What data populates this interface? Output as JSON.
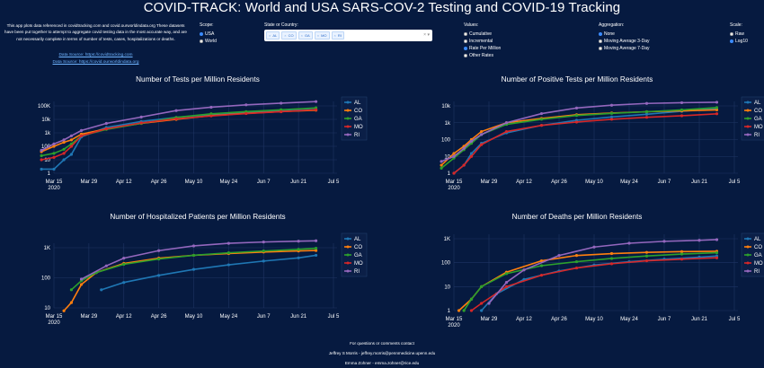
{
  "title": "COVID-TRACK: World and USA SARS-COV-2 Testing and COVID-19 Tracking",
  "intro": {
    "text": "This app plots data referenced in covidtracking.com and covid.ourworldindata.org These datasets have been put together to attempt to aggregate covid testing data in the most accurate way, and are not necessarily complete in terms of number of tests, cases, hospitalizations or deaths.",
    "source1": "Data Source: https://covidtracking.com",
    "source2": "Data Source: https://covid.ourworldindata.org"
  },
  "controls": {
    "scope": {
      "label": "Scope:",
      "options": [
        "USA",
        "World"
      ],
      "selected": "USA"
    },
    "state": {
      "label": "State or Country:",
      "chips": [
        "AL",
        "CO",
        "GA",
        "MO",
        "RI"
      ],
      "clear": "×",
      "arrow": "▾"
    },
    "values": {
      "label": "Values:",
      "options": [
        "Cumulative",
        "Incremental",
        "Rate Per Million",
        "Other Rates"
      ],
      "selected": "Rate Per Million"
    },
    "aggregation": {
      "label": "Aggregation:",
      "options": [
        "None",
        "Moving Average 3-Day",
        "Moving Average 7-Day"
      ],
      "selected": "None"
    },
    "scale": {
      "label": "Scale:",
      "options": [
        "Raw",
        "Log10"
      ],
      "selected": "Log10"
    }
  },
  "legend_colors": {
    "AL": "#1f77b4",
    "CO": "#ff7f0e",
    "GA": "#2ca02c",
    "MO": "#d62728",
    "RI": "#9467bd"
  },
  "x_ticks": [
    "Mar 15",
    "Mar 29",
    "Apr 12",
    "Apr 26",
    "May 10",
    "May 24",
    "Jun 7",
    "Jun 21",
    "Jul 5"
  ],
  "x_tick_sub": "2020",
  "chart_data": [
    {
      "type": "line",
      "title": "Number of Tests per Million Residents",
      "y_scale": "log",
      "y_ticks": [
        "1",
        "10",
        "100",
        "1k",
        "10k",
        "100K"
      ],
      "legend_placement": "right",
      "series": [
        {
          "name": "AL",
          "points": [
            [
              "Mar 10",
              2
            ],
            [
              "Mar 15",
              2
            ],
            [
              "Mar 19",
              10
            ],
            [
              "Mar 22",
              25
            ],
            [
              "Mar 26",
              500
            ],
            [
              "Apr 5",
              2500
            ],
            [
              "Apr 19",
              7000
            ],
            [
              "May 3",
              14000
            ],
            [
              "May 17",
              23000
            ],
            [
              "May 31",
              32000
            ],
            [
              "Jun 14",
              42000
            ],
            [
              "Jun 28",
              55000
            ]
          ]
        },
        {
          "name": "CO",
          "points": [
            [
              "Mar 10",
              40
            ],
            [
              "Mar 15",
              100
            ],
            [
              "Mar 19",
              200
            ],
            [
              "Mar 22",
              300
            ],
            [
              "Mar 26",
              800
            ],
            [
              "Apr 5",
              2000
            ],
            [
              "Apr 19",
              5000
            ],
            [
              "May 3",
              10000
            ],
            [
              "May 17",
              19000
            ],
            [
              "May 31",
              28000
            ],
            [
              "Jun 14",
              38000
            ],
            [
              "Jun 28",
              48000
            ]
          ]
        },
        {
          "name": "GA",
          "points": [
            [
              "Mar 10",
              20
            ],
            [
              "Mar 15",
              30
            ],
            [
              "Mar 19",
              60
            ],
            [
              "Mar 22",
              150
            ],
            [
              "Mar 26",
              600
            ],
            [
              "Apr 5",
              1800
            ],
            [
              "Apr 19",
              5000
            ],
            [
              "May 3",
              14000
            ],
            [
              "May 17",
              26000
            ],
            [
              "May 31",
              38000
            ],
            [
              "Jun 14",
              52000
            ],
            [
              "Jun 28",
              72000
            ]
          ]
        },
        {
          "name": "MO",
          "points": [
            [
              "Mar 10",
              10
            ],
            [
              "Mar 15",
              15
            ],
            [
              "Mar 19",
              30
            ],
            [
              "Mar 22",
              100
            ],
            [
              "Mar 26",
              600
            ],
            [
              "Apr 5",
              2000
            ],
            [
              "Apr 19",
              5500
            ],
            [
              "May 3",
              11000
            ],
            [
              "May 17",
              18000
            ],
            [
              "May 31",
              27000
            ],
            [
              "Jun 14",
              37000
            ],
            [
              "Jun 28",
              52000
            ]
          ]
        },
        {
          "name": "RI",
          "points": [
            [
              "Mar 10",
              50
            ],
            [
              "Mar 15",
              150
            ],
            [
              "Mar 19",
              300
            ],
            [
              "Mar 22",
              600
            ],
            [
              "Mar 26",
              1500
            ],
            [
              "Apr 5",
              5000
            ],
            [
              "Apr 19",
              15000
            ],
            [
              "May 3",
              45000
            ],
            [
              "May 17",
              80000
            ],
            [
              "May 31",
              120000
            ],
            [
              "Jun 14",
              160000
            ],
            [
              "Jun 28",
              210000
            ]
          ]
        }
      ]
    },
    {
      "type": "line",
      "title": "Number of Positive Tests per Million Residents",
      "y_scale": "log",
      "y_ticks": [
        "1",
        "10",
        "100",
        "1k",
        "10k"
      ],
      "legend_placement": "right",
      "series": [
        {
          "name": "AL",
          "points": [
            [
              "Mar 15",
              1
            ],
            [
              "Mar 19",
              3
            ],
            [
              "Mar 22",
              15
            ],
            [
              "Mar 26",
              60
            ],
            [
              "Apr 5",
              250
            ],
            [
              "Apr 19",
              700
            ],
            [
              "May 3",
              1400
            ],
            [
              "May 17",
              2200
            ],
            [
              "May 31",
              3200
            ],
            [
              "Jun 14",
              4800
            ],
            [
              "Jun 28",
              7000
            ]
          ]
        },
        {
          "name": "CO",
          "points": [
            [
              "Mar 10",
              3
            ],
            [
              "Mar 15",
              15
            ],
            [
              "Mar 19",
              40
            ],
            [
              "Mar 22",
              100
            ],
            [
              "Mar 26",
              300
            ],
            [
              "Apr 5",
              1000
            ],
            [
              "Apr 19",
              1800
            ],
            [
              "May 3",
              3000
            ],
            [
              "May 17",
              3800
            ],
            [
              "May 31",
              4500
            ],
            [
              "Jun 14",
              5100
            ],
            [
              "Jun 28",
              5800
            ]
          ]
        },
        {
          "name": "GA",
          "points": [
            [
              "Mar 10",
              2
            ],
            [
              "Mar 15",
              8
            ],
            [
              "Mar 19",
              25
            ],
            [
              "Mar 22",
              60
            ],
            [
              "Mar 26",
              200
            ],
            [
              "Apr 5",
              800
            ],
            [
              "Apr 19",
              1600
            ],
            [
              "May 3",
              2700
            ],
            [
              "May 17",
              3600
            ],
            [
              "May 31",
              4500
            ],
            [
              "Jun 14",
              5800
            ],
            [
              "Jun 28",
              8000
            ]
          ]
        },
        {
          "name": "MO",
          "points": [
            [
              "Mar 15",
              1
            ],
            [
              "Mar 19",
              3
            ],
            [
              "Mar 22",
              10
            ],
            [
              "Mar 26",
              50
            ],
            [
              "Apr 5",
              300
            ],
            [
              "Apr 19",
              700
            ],
            [
              "May 3",
              1100
            ],
            [
              "May 17",
              1600
            ],
            [
              "May 31",
              2100
            ],
            [
              "Jun 14",
              2600
            ],
            [
              "Jun 28",
              3400
            ]
          ]
        },
        {
          "name": "RI",
          "points": [
            [
              "Mar 10",
              5
            ],
            [
              "Mar 15",
              10
            ],
            [
              "Mar 19",
              30
            ],
            [
              "Mar 22",
              80
            ],
            [
              "Mar 26",
              200
            ],
            [
              "Apr 5",
              1000
            ],
            [
              "Apr 19",
              3500
            ],
            [
              "May 3",
              7500
            ],
            [
              "May 17",
              11000
            ],
            [
              "May 31",
              14000
            ],
            [
              "Jun 14",
              15500
            ],
            [
              "Jun 28",
              16500
            ]
          ]
        }
      ]
    },
    {
      "type": "line",
      "title": "Number of Hospitalized Patients per Million Residents",
      "y_scale": "log",
      "y_ticks": [
        "10",
        "100",
        "1K"
      ],
      "legend_placement": "right",
      "series": [
        {
          "name": "AL",
          "points": [
            [
              "Apr 3",
              40
            ],
            [
              "Apr 12",
              70
            ],
            [
              "Apr 26",
              120
            ],
            [
              "May 10",
              190
            ],
            [
              "May 24",
              270
            ],
            [
              "Jun 7",
              360
            ],
            [
              "Jun 21",
              460
            ],
            [
              "Jun 28",
              560
            ]
          ]
        },
        {
          "name": "CO",
          "points": [
            [
              "Mar 19",
              8
            ],
            [
              "Mar 22",
              15
            ],
            [
              "Mar 26",
              60
            ],
            [
              "Apr 1",
              150
            ],
            [
              "Apr 12",
              300
            ],
            [
              "Apr 26",
              450
            ],
            [
              "May 10",
              560
            ],
            [
              "May 24",
              640
            ],
            [
              "Jun 7",
              720
            ],
            [
              "Jun 21",
              780
            ],
            [
              "Jun 28",
              810
            ]
          ]
        },
        {
          "name": "GA",
          "points": [
            [
              "Mar 22",
              40
            ],
            [
              "Mar 26",
              80
            ],
            [
              "Apr 1",
              150
            ],
            [
              "Apr 12",
              280
            ],
            [
              "Apr 26",
              420
            ],
            [
              "May 10",
              560
            ],
            [
              "May 24",
              680
            ],
            [
              "Jun 7",
              780
            ],
            [
              "Jun 21",
              880
            ],
            [
              "Jun 28",
              960
            ]
          ]
        },
        {
          "name": "RI",
          "points": [
            [
              "Mar 26",
              90
            ],
            [
              "Apr 5",
              250
            ],
            [
              "Apr 12",
              450
            ],
            [
              "Apr 26",
              800
            ],
            [
              "May 10",
              1150
            ],
            [
              "May 24",
              1400
            ],
            [
              "Jun 7",
              1550
            ],
            [
              "Jun 21",
              1650
            ],
            [
              "Jun 28",
              1700
            ]
          ]
        }
      ]
    },
    {
      "type": "line",
      "title": "Number of Deaths per Million Residents",
      "y_scale": "log",
      "y_ticks": [
        "1",
        "10",
        "100",
        "1K"
      ],
      "legend_placement": "right",
      "series": [
        {
          "name": "AL",
          "points": [
            [
              "Mar 26",
              1
            ],
            [
              "Apr 1",
              5
            ],
            [
              "Apr 12",
              20
            ],
            [
              "Apr 26",
              45
            ],
            [
              "May 10",
              80
            ],
            [
              "May 24",
              110
            ],
            [
              "Jun 7",
              140
            ],
            [
              "Jun 21",
              170
            ],
            [
              "Jun 28",
              190
            ]
          ]
        },
        {
          "name": "CO",
          "points": [
            [
              "Mar 17",
              1
            ],
            [
              "Mar 22",
              3
            ],
            [
              "Mar 26",
              10
            ],
            [
              "Apr 5",
              40
            ],
            [
              "Apr 19",
              120
            ],
            [
              "May 3",
              200
            ],
            [
              "May 17",
              240
            ],
            [
              "May 31",
              270
            ],
            [
              "Jun 14",
              290
            ],
            [
              "Jun 28",
              300
            ]
          ]
        },
        {
          "name": "GA",
          "points": [
            [
              "Mar 19",
              1
            ],
            [
              "Mar 22",
              3
            ],
            [
              "Mar 26",
              10
            ],
            [
              "Apr 5",
              35
            ],
            [
              "Apr 19",
              75
            ],
            [
              "May 3",
              110
            ],
            [
              "May 17",
              150
            ],
            [
              "May 31",
              190
            ],
            [
              "Jun 14",
              230
            ],
            [
              "Jun 28",
              260
            ]
          ]
        },
        {
          "name": "MO",
          "points": [
            [
              "Mar 22",
              1
            ],
            [
              "Mar 26",
              2
            ],
            [
              "Apr 5",
              10
            ],
            [
              "Apr 19",
              30
            ],
            [
              "May 3",
              60
            ],
            [
              "May 17",
              90
            ],
            [
              "May 31",
              120
            ],
            [
              "Jun 14",
              140
            ],
            [
              "Jun 28",
              160
            ]
          ]
        },
        {
          "name": "RI",
          "points": [
            [
              "Mar 29",
              2
            ],
            [
              "Apr 5",
              15
            ],
            [
              "Apr 12",
              50
            ],
            [
              "Apr 26",
              200
            ],
            [
              "May 10",
              450
            ],
            [
              "May 24",
              650
            ],
            [
              "Jun 7",
              780
            ],
            [
              "Jun 21",
              860
            ],
            [
              "Jun 28",
              920
            ]
          ]
        }
      ]
    }
  ],
  "footer": {
    "line1": "For questions or comments contact",
    "line2": "Jeffrey S Morris - jeffrey.morris@pennmedicine.upenn.edu",
    "line3": "Emma Zohner - emma.zohner@rice.edu"
  }
}
